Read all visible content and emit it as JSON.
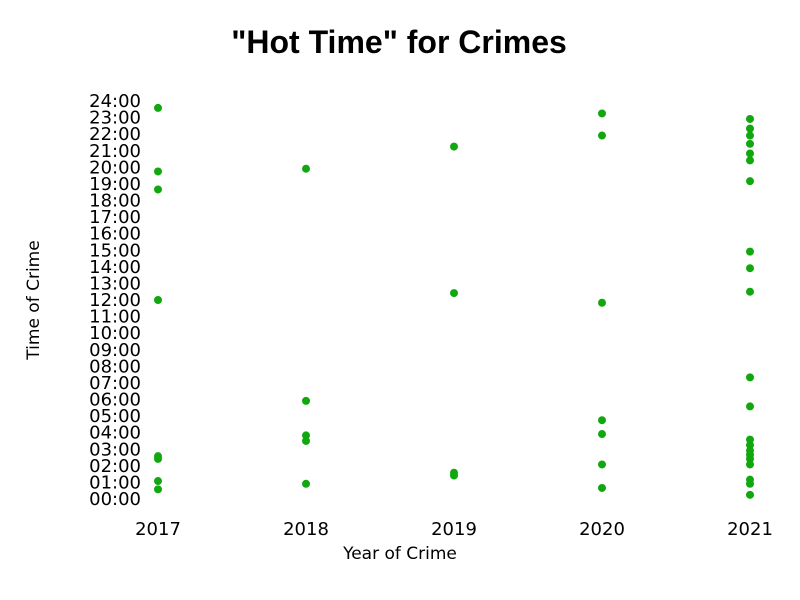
{
  "chart_data": {
    "type": "scatter",
    "title": "\"Hot Time\" for Crimes",
    "xlabel": "Year of Crime",
    "ylabel": "Time of Crime",
    "x_ticks": [
      "2017",
      "2018",
      "2019",
      "2020",
      "2021"
    ],
    "y_ticks": [
      "00:00",
      "01:00",
      "02:00",
      "03:00",
      "04:00",
      "05:00",
      "06:00",
      "07:00",
      "08:00",
      "09:00",
      "10:00",
      "11:00",
      "12:00",
      "13:00",
      "14:00",
      "15:00",
      "16:00",
      "17:00",
      "18:00",
      "19:00",
      "20:00",
      "21:00",
      "22:00",
      "23:00",
      "24:00"
    ],
    "ylim": [
      "00:00",
      "24:00"
    ],
    "grid": false,
    "marker_color": "#11a80f",
    "series": [
      {
        "year": "2017",
        "times": [
          "00:35",
          "01:05",
          "02:25",
          "02:35",
          "12:00",
          "18:40",
          "19:45",
          "23:35"
        ]
      },
      {
        "year": "2018",
        "times": [
          "00:55",
          "03:30",
          "03:50",
          "05:55",
          "19:55"
        ]
      },
      {
        "year": "2019",
        "times": [
          "01:25",
          "01:35",
          "12:25",
          "21:15"
        ]
      },
      {
        "year": "2020",
        "times": [
          "00:40",
          "02:05",
          "03:55",
          "04:45",
          "11:50",
          "21:55",
          "23:15"
        ]
      },
      {
        "year": "2021",
        "times": [
          "00:15",
          "00:55",
          "01:10",
          "02:05",
          "02:25",
          "02:40",
          "02:55",
          "03:15",
          "03:35",
          "05:35",
          "07:20",
          "12:30",
          "13:55",
          "14:55",
          "19:10",
          "20:25",
          "20:50",
          "21:25",
          "21:55",
          "22:20",
          "22:55"
        ]
      }
    ]
  }
}
